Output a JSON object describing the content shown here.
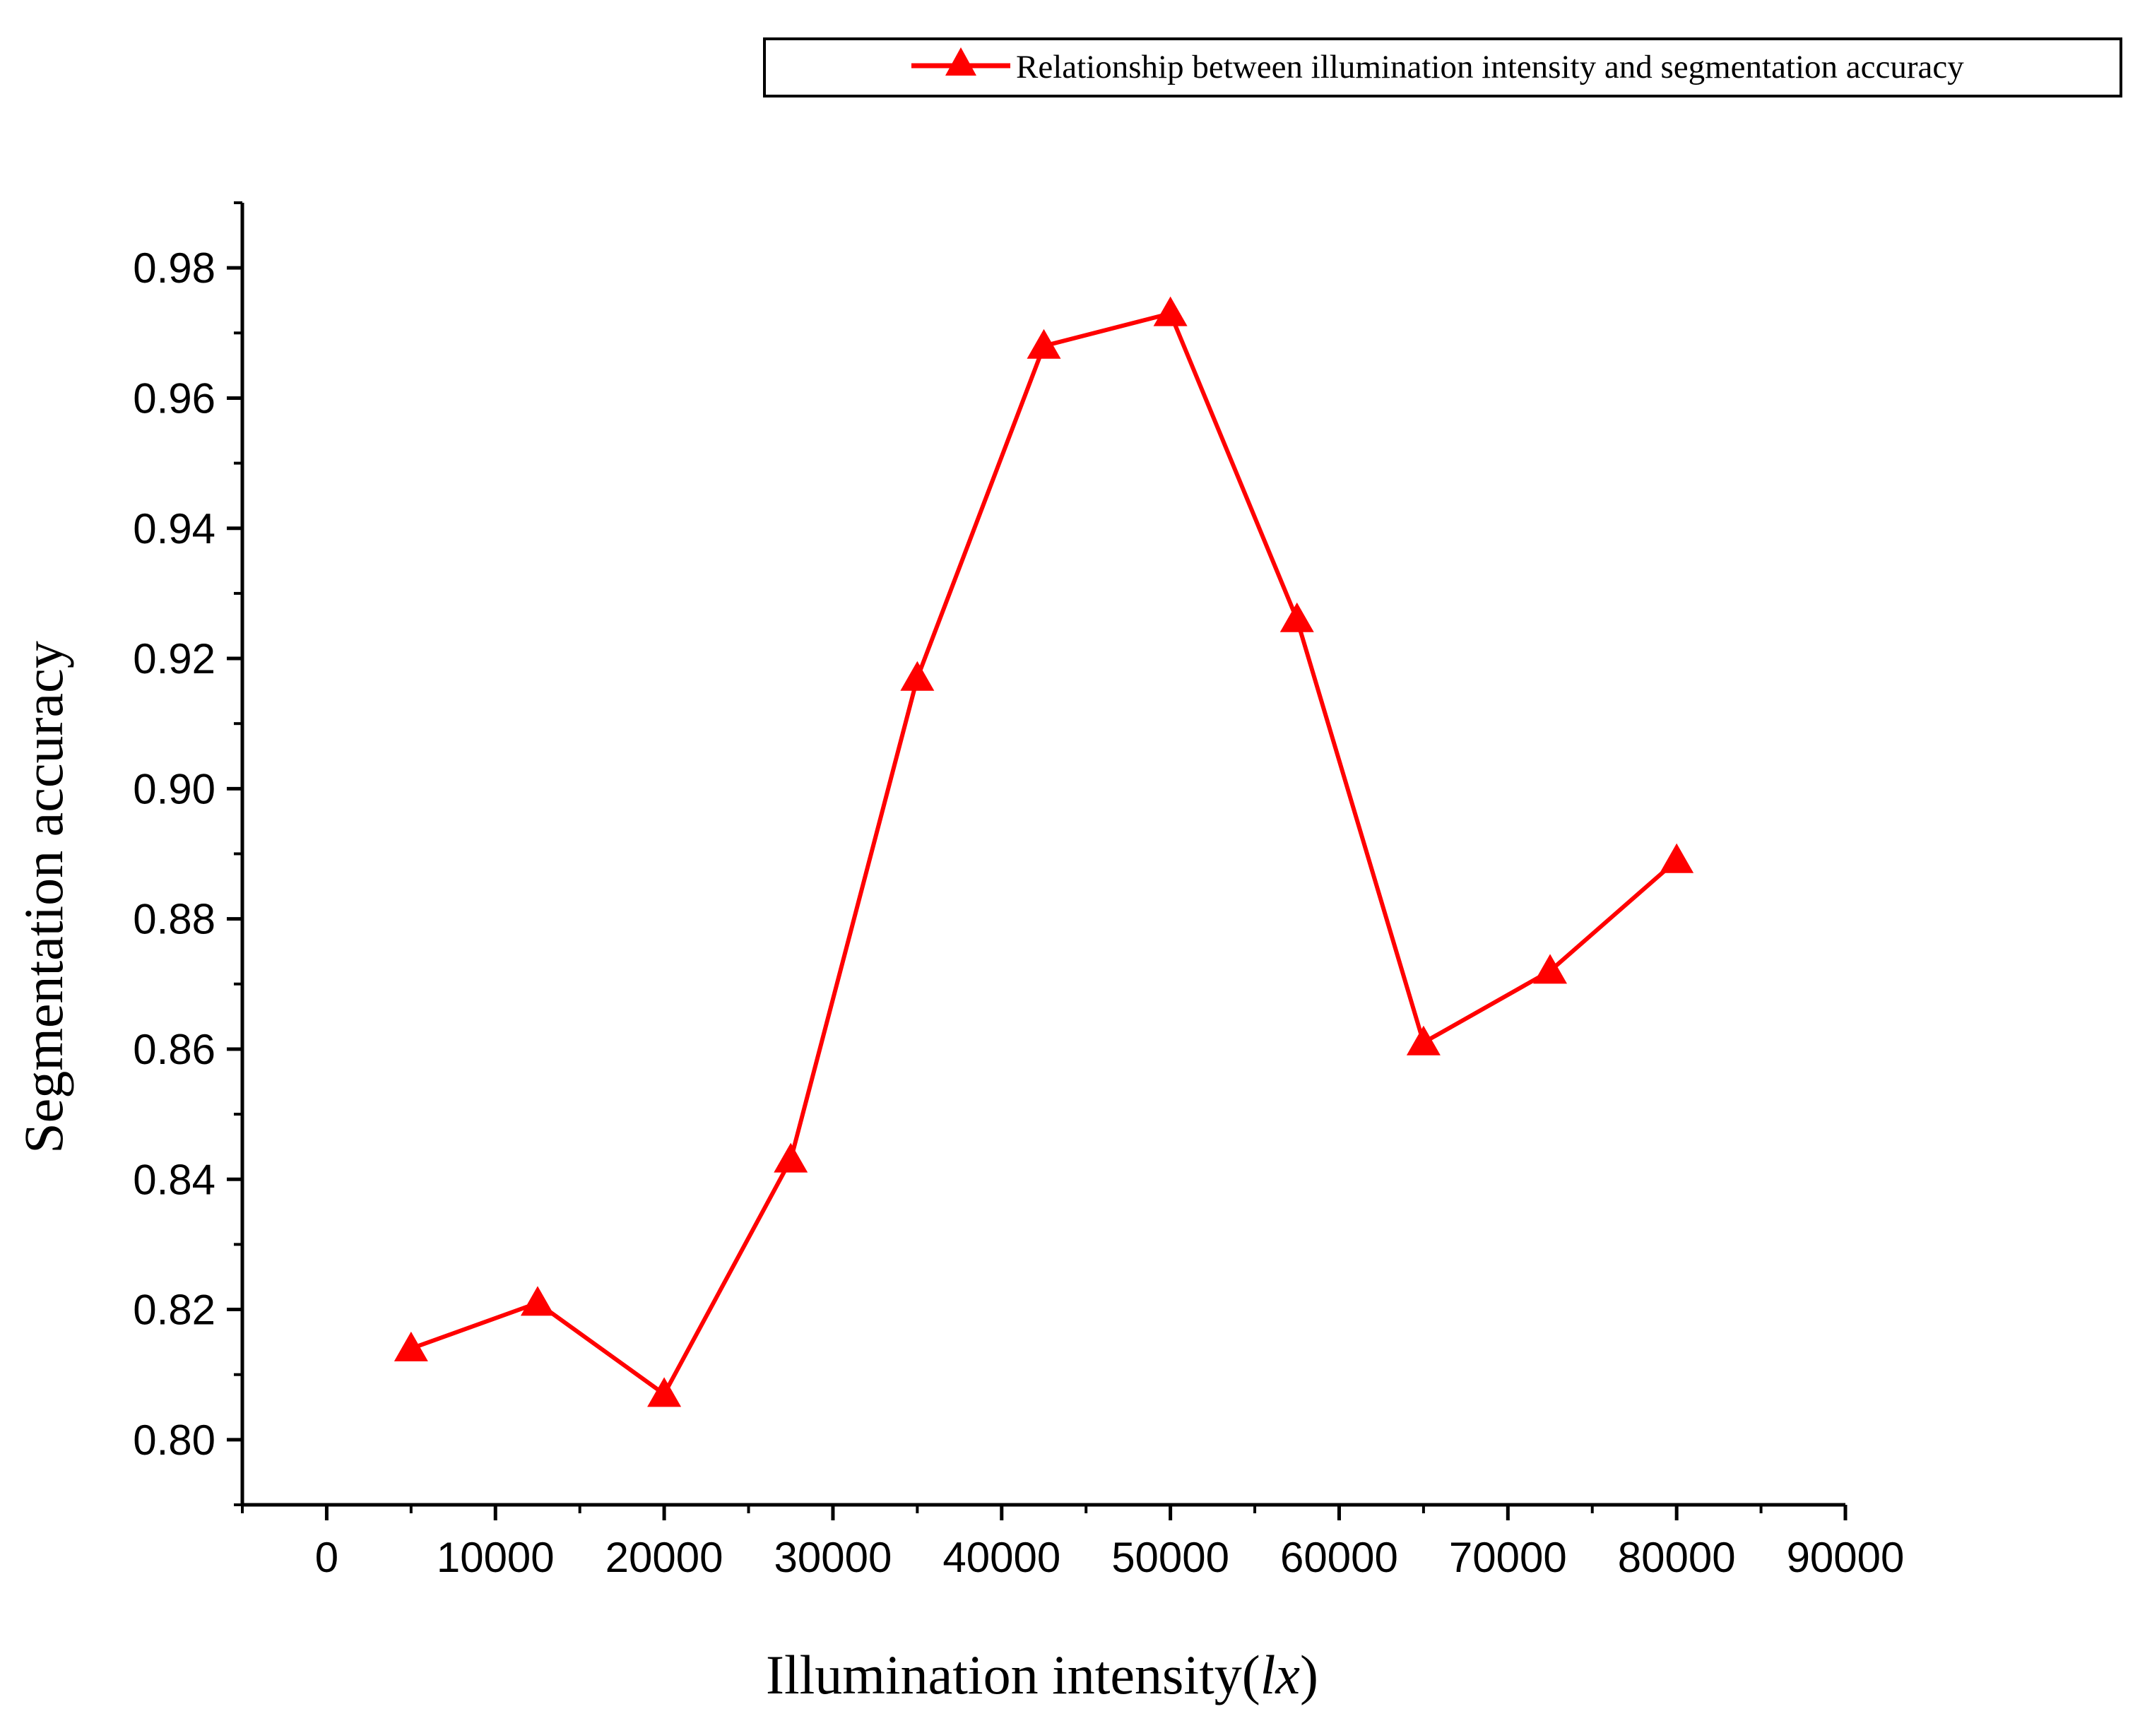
{
  "chart_data": {
    "type": "line",
    "xlabel": "Illumination intensity(",
    "xlabel_unit": "lx",
    "xlabel_close": ")",
    "ylabel": "Segmentation accuracy",
    "xlim": [
      -5000,
      90000
    ],
    "ylim": [
      0.79,
      0.99
    ],
    "x_ticks": [
      0,
      10000,
      20000,
      30000,
      40000,
      50000,
      60000,
      70000,
      80000,
      90000
    ],
    "y_ticks": [
      0.8,
      0.82,
      0.84,
      0.86,
      0.88,
      0.9,
      0.92,
      0.94,
      0.96,
      0.98
    ],
    "x_tick_labels": [
      "0",
      "10000",
      "20000",
      "30000",
      "40000",
      "50000",
      "60000",
      "70000",
      "80000",
      "90000"
    ],
    "y_tick_labels": [
      "0.80",
      "0.82",
      "0.84",
      "0.86",
      "0.88",
      "0.90",
      "0.92",
      "0.94",
      "0.96",
      "0.98"
    ],
    "grid": false,
    "legend_position": "top-right",
    "series": [
      {
        "name": "Relationship between illumination intensity and segmentation accuracy",
        "color": "#ff0000",
        "marker": "triangle",
        "x": [
          5000,
          12500,
          20000,
          27500,
          35000,
          42500,
          50000,
          57500,
          65000,
          72500,
          80000
        ],
        "y": [
          0.814,
          0.821,
          0.807,
          0.843,
          0.917,
          0.968,
          0.973,
          0.926,
          0.861,
          0.872,
          0.889
        ]
      }
    ]
  }
}
